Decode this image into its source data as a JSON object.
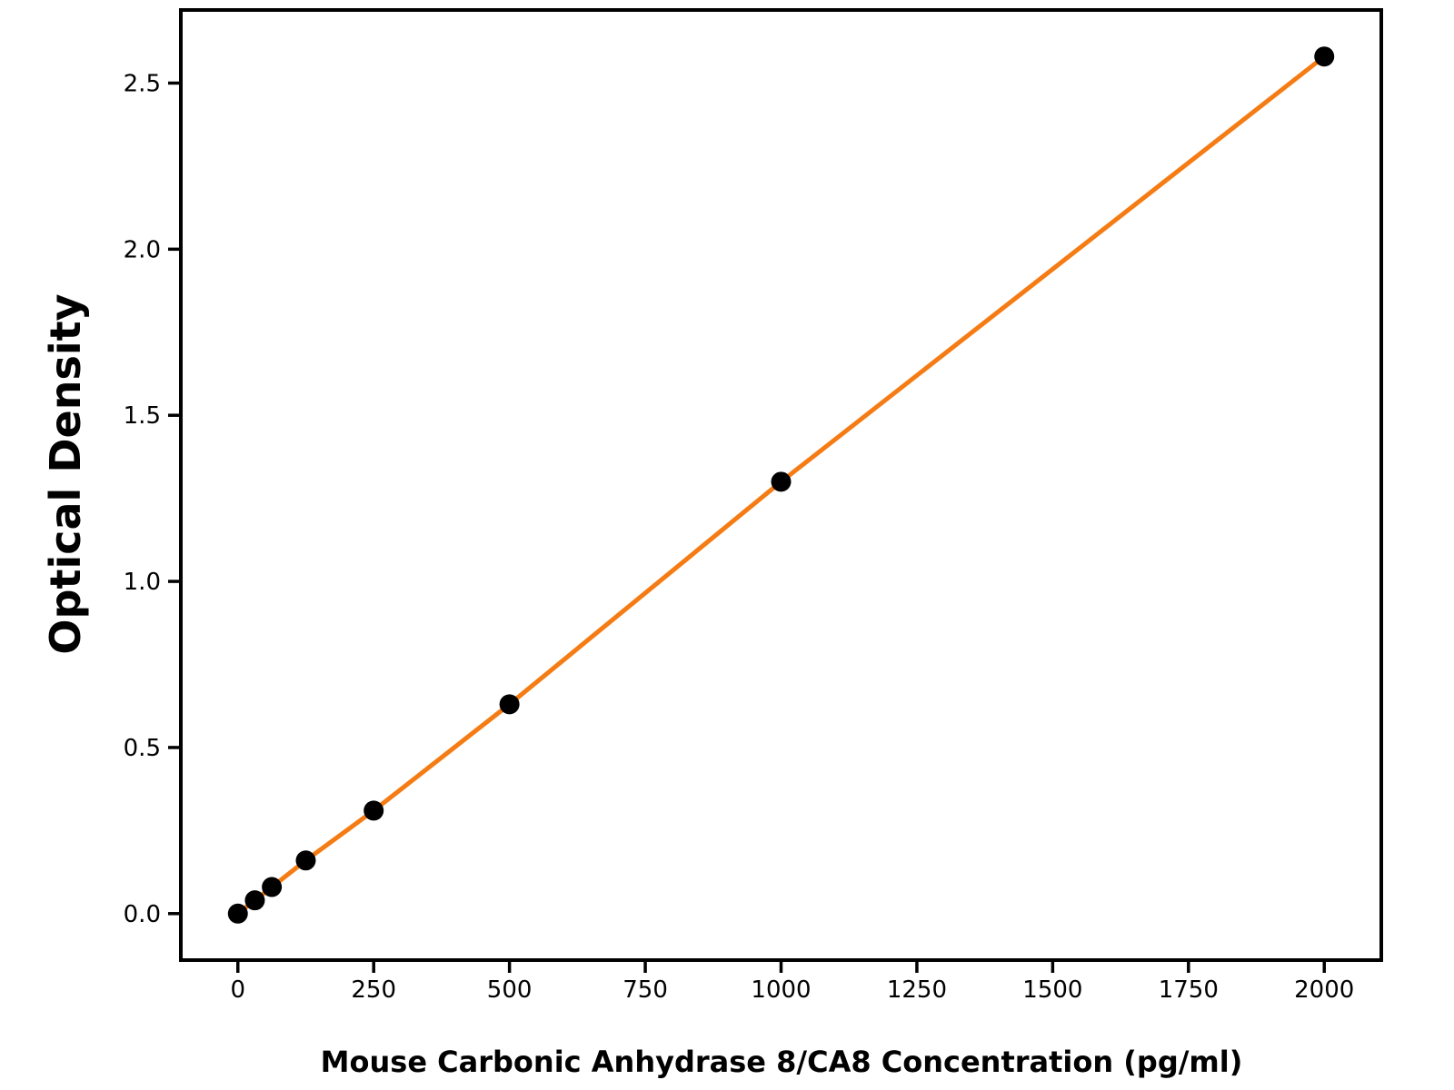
{
  "chart_data": {
    "type": "scatter",
    "title": "",
    "xlabel": "Mouse Carbonic Anhydrase 8/CA8 Concentration (pg/ml)",
    "ylabel": "Optical Density",
    "series": [
      {
        "name": "standard-curve",
        "x": [
          0,
          31.25,
          62.5,
          125,
          250,
          500,
          1000,
          2000
        ],
        "y": [
          0.0,
          0.04,
          0.08,
          0.16,
          0.31,
          0.63,
          1.3,
          2.58
        ],
        "line_color": "#F57C14",
        "marker_color": "#000000",
        "marker": "circle",
        "line_width": 5,
        "marker_radius": 11
      }
    ],
    "xlim": [
      -105,
      2105
    ],
    "ylim": [
      -0.14,
      2.72
    ],
    "x_ticks": {
      "values": [
        0,
        250,
        500,
        750,
        1000,
        1250,
        1500,
        1750,
        2000
      ],
      "labels": [
        "0",
        "250",
        "500",
        "750",
        "1000",
        "1250",
        "1500",
        "1750",
        "2000"
      ]
    },
    "y_ticks": {
      "values": [
        0.0,
        0.5,
        1.0,
        1.5,
        2.0,
        2.5
      ],
      "labels": [
        "0.0",
        "0.5",
        "1.0",
        "1.5",
        "2.0",
        "2.5"
      ]
    },
    "grid": false,
    "legend": "none",
    "axis_color": "#000000",
    "background": "#FFFFFF"
  }
}
